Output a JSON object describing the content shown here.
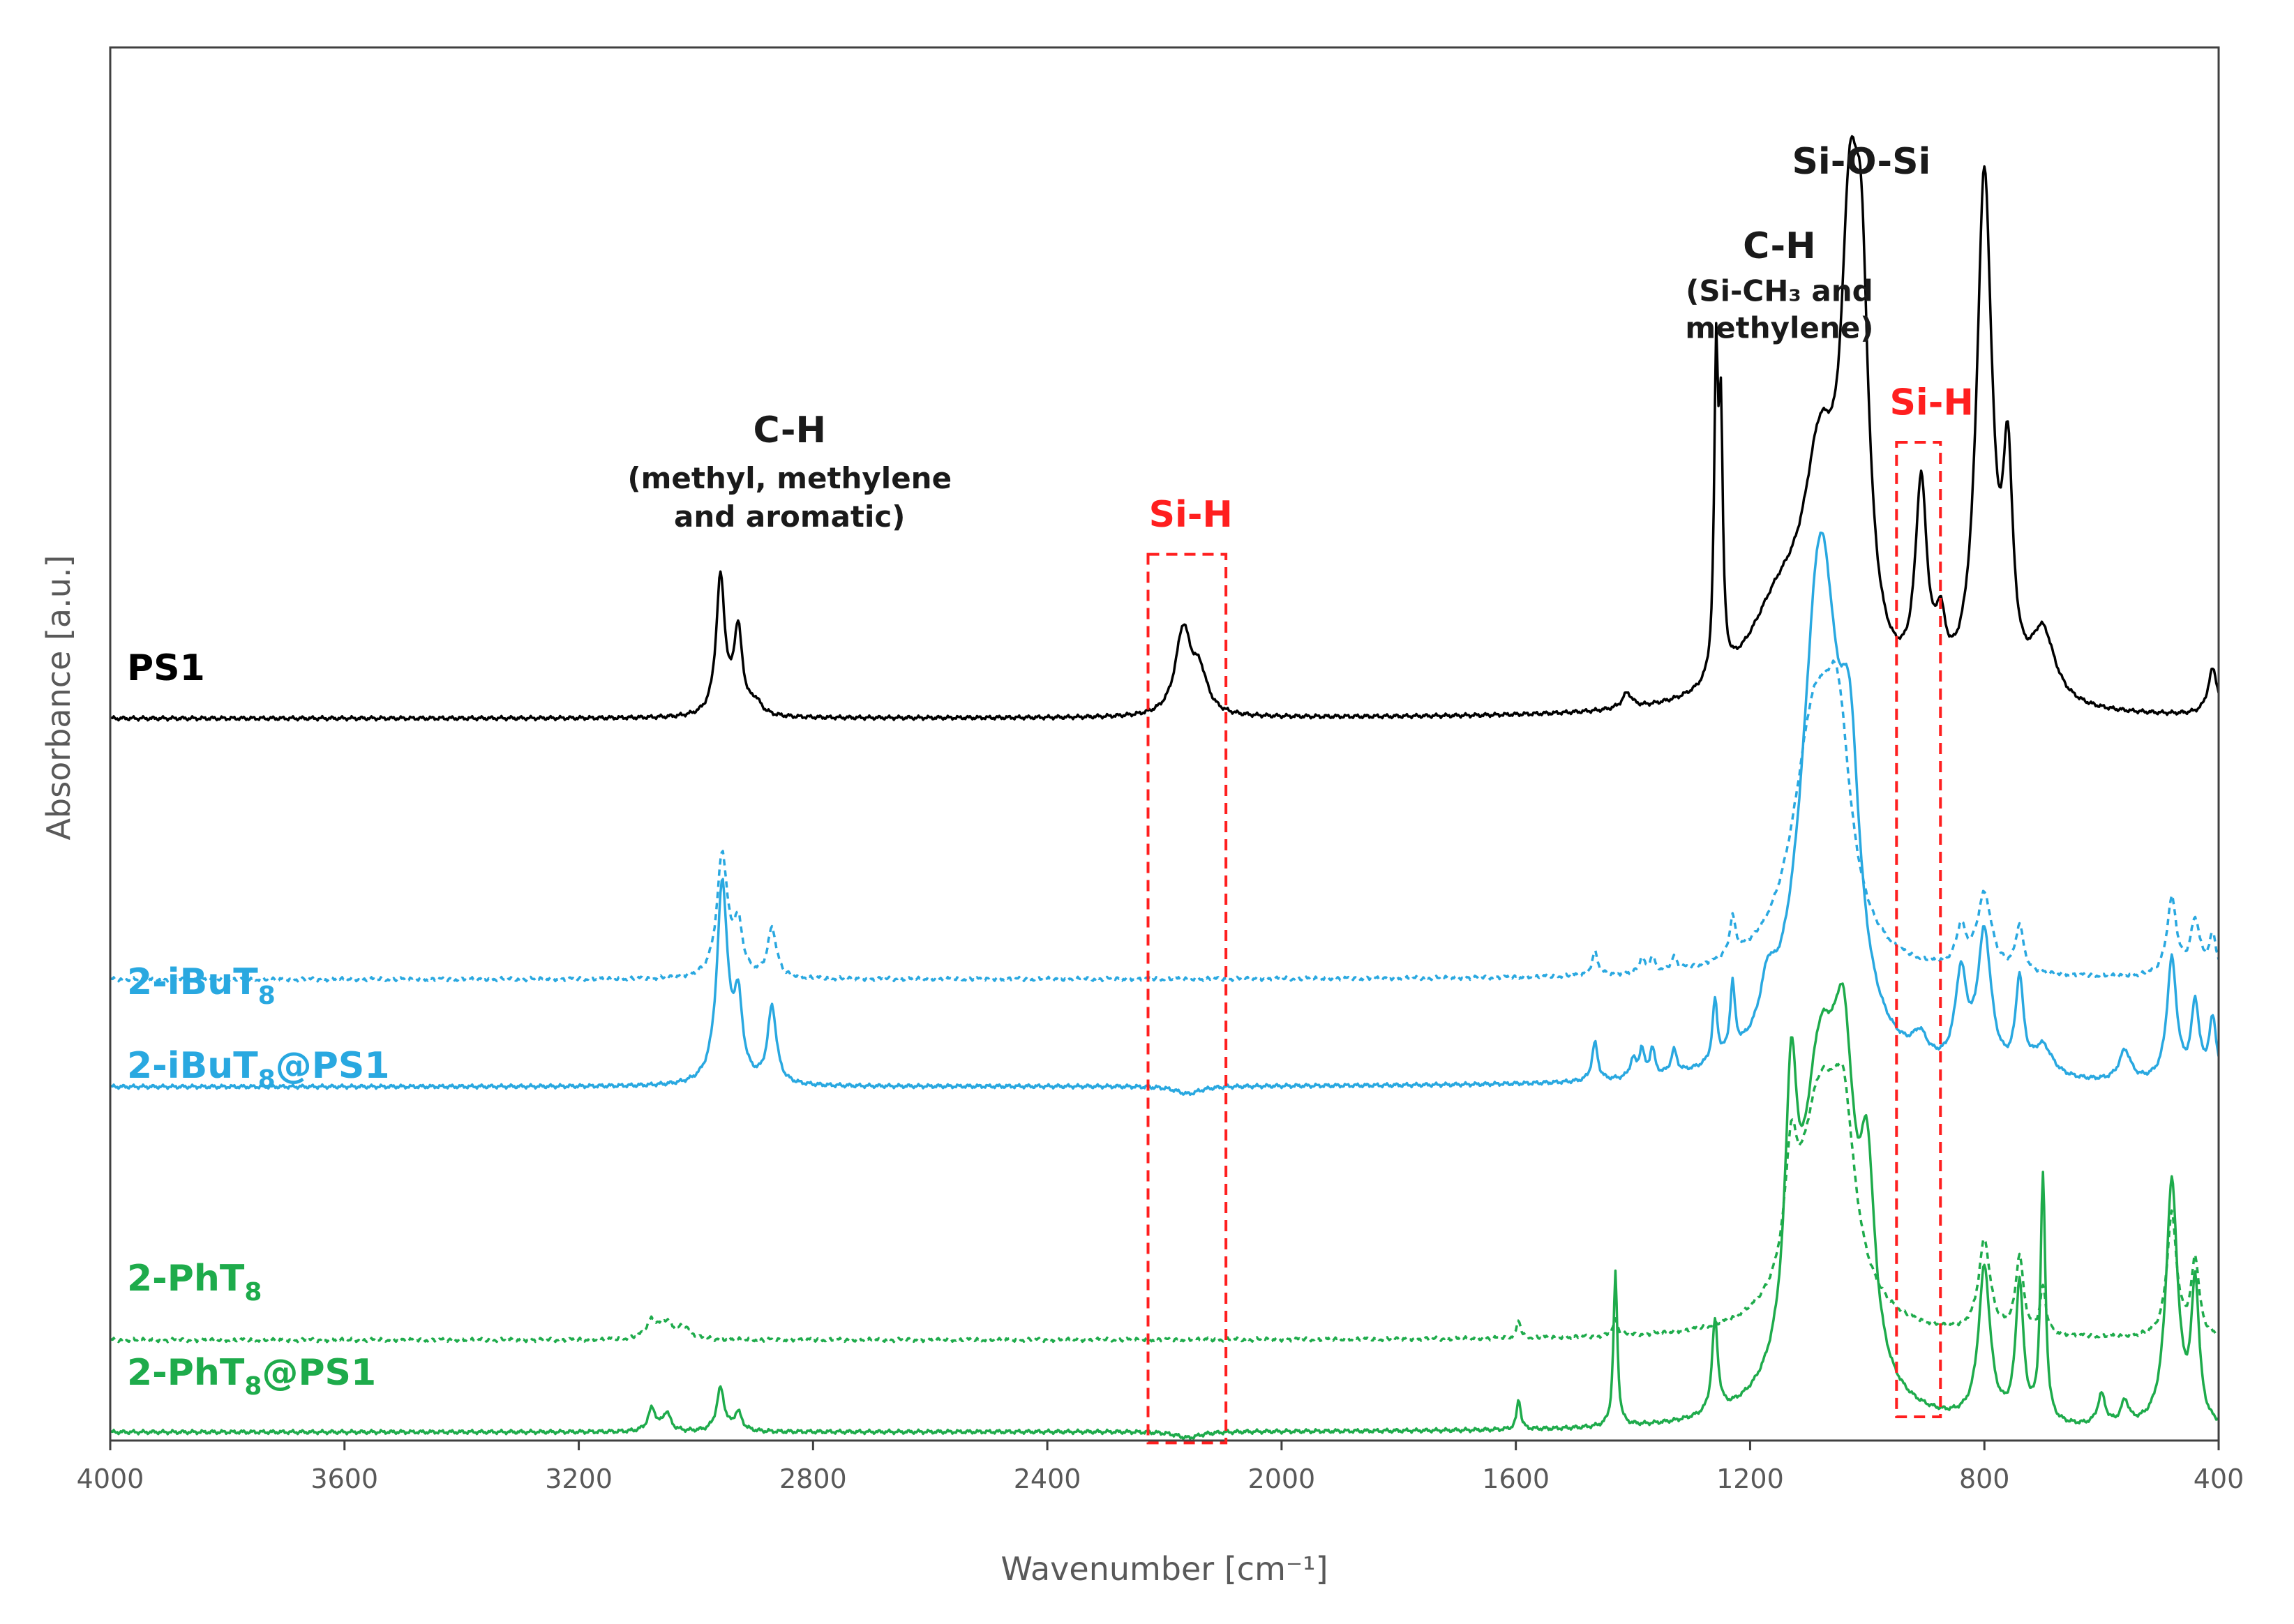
{
  "chart_data": {
    "type": "line",
    "title": "",
    "xlabel": "Wavenumber [cm⁻¹]",
    "ylabel": "Absorbance [a.u.]",
    "xlim": [
      4000,
      400
    ],
    "x_reversed": true,
    "x_ticks": [
      4000,
      3600,
      3200,
      2800,
      2400,
      2000,
      1600,
      1200,
      800,
      400
    ],
    "grid": false,
    "legend": "inline labels at left",
    "colors": {
      "PS1": "#000000",
      "iBu": "#29a8e0",
      "Ph": "#1eab4b",
      "highlight": "#ff1f1f",
      "axis": "#404040"
    },
    "series": [
      {
        "name": "PS1",
        "label_main": "PS1",
        "label_sub": "",
        "label_tail": "",
        "style": "solid",
        "baseline": 0.0,
        "peaks": [
          [
            2958,
            0.9,
            9
          ],
          [
            2928,
            0.55,
            9
          ],
          [
            2898,
            0.08,
            12
          ],
          [
            2168,
            0.55,
            16
          ],
          [
            2140,
            0.25,
            16
          ],
          [
            1410,
            0.1,
            10
          ],
          [
            1258,
            2.0,
            4
          ],
          [
            1250,
            1.55,
            4
          ],
          [
            1150,
            0.6,
            70
          ],
          [
            1080,
            1.3,
            35
          ],
          [
            1030,
            2.4,
            18
          ],
          [
            1010,
            2.0,
            15
          ],
          [
            908,
            1.3,
            12
          ],
          [
            875,
            0.35,
            10
          ],
          [
            800,
            3.4,
            16
          ],
          [
            760,
            1.35,
            10
          ],
          [
            700,
            0.45,
            25
          ],
          [
            410,
            0.3,
            10
          ]
        ]
      },
      {
        "name": "2-iBuT8",
        "label_main": "2-iBuT",
        "label_sub": "8",
        "label_tail": "",
        "style": "dashed",
        "baseline": -1.7,
        "peaks": [
          [
            2955,
            0.8,
            11
          ],
          [
            2928,
            0.32,
            9
          ],
          [
            2870,
            0.32,
            9
          ],
          [
            1465,
            0.15,
            6
          ],
          [
            1385,
            0.1,
            5
          ],
          [
            1367,
            0.1,
            5
          ],
          [
            1330,
            0.08,
            6
          ],
          [
            1230,
            0.25,
            6
          ],
          [
            1090,
            1.6,
            45
          ],
          [
            1050,
            1.1,
            25
          ],
          [
            840,
            0.25,
            10
          ],
          [
            800,
            0.5,
            15
          ],
          [
            740,
            0.3,
            8
          ],
          [
            480,
            0.5,
            10
          ],
          [
            440,
            0.35,
            10
          ],
          [
            410,
            0.25,
            8
          ]
        ]
      },
      {
        "name": "2-iBuT8@PS1",
        "label_main": "2-iBuT",
        "label_sub": "8",
        "label_tail": "@PS1",
        "style": "solid",
        "baseline": -2.4,
        "peaks": [
          [
            2955,
            1.3,
            11
          ],
          [
            2928,
            0.5,
            9
          ],
          [
            2870,
            0.5,
            9
          ],
          [
            2160,
            -0.05,
            25
          ],
          [
            1465,
            0.25,
            6
          ],
          [
            1400,
            0.12,
            6
          ],
          [
            1385,
            0.18,
            5
          ],
          [
            1367,
            0.18,
            5
          ],
          [
            1330,
            0.15,
            6
          ],
          [
            1260,
            0.4,
            5
          ],
          [
            1230,
            0.45,
            5
          ],
          [
            1170,
            0.3,
            15
          ],
          [
            1080,
            3.4,
            38
          ],
          [
            1030,
            1.4,
            20
          ],
          [
            910,
            0.15,
            15
          ],
          [
            840,
            0.6,
            12
          ],
          [
            800,
            0.9,
            14
          ],
          [
            740,
            0.6,
            8
          ],
          [
            700,
            0.2,
            20
          ],
          [
            560,
            0.2,
            12
          ],
          [
            480,
            0.8,
            10
          ],
          [
            440,
            0.5,
            8
          ],
          [
            410,
            0.4,
            8
          ]
        ]
      },
      {
        "name": "2-PhT8",
        "label_main": "2-PhT",
        "label_sub": "8",
        "label_tail": "",
        "style": "dashed",
        "baseline": -4.05,
        "peaks": [
          [
            3075,
            0.12,
            12
          ],
          [
            3050,
            0.1,
            12
          ],
          [
            3020,
            0.08,
            12
          ],
          [
            1595,
            0.12,
            4
          ],
          [
            1430,
            0.1,
            5
          ],
          [
            1130,
            0.7,
            12
          ],
          [
            1080,
            1.5,
            45
          ],
          [
            1040,
            0.9,
            22
          ],
          [
            800,
            0.6,
            12
          ],
          [
            740,
            0.5,
            8
          ],
          [
            700,
            0.3,
            6
          ],
          [
            480,
            0.8,
            10
          ],
          [
            440,
            0.5,
            8
          ]
        ]
      },
      {
        "name": "2-PhT8@PS1",
        "label_main": "2-PhT",
        "label_sub": "8",
        "label_tail": "@PS1",
        "style": "solid",
        "baseline": -4.65,
        "peaks": [
          [
            3075,
            0.15,
            8
          ],
          [
            3050,
            0.12,
            8
          ],
          [
            2958,
            0.28,
            8
          ],
          [
            2928,
            0.12,
            8
          ],
          [
            2160,
            -0.04,
            25
          ],
          [
            1595,
            0.2,
            4
          ],
          [
            1430,
            1.0,
            4
          ],
          [
            1260,
            0.6,
            6
          ],
          [
            1130,
            1.6,
            12
          ],
          [
            1080,
            2.2,
            40
          ],
          [
            1040,
            1.6,
            22
          ],
          [
            1000,
            1.2,
            15
          ],
          [
            800,
            1.0,
            12
          ],
          [
            740,
            0.9,
            8
          ],
          [
            700,
            1.6,
            5
          ],
          [
            600,
            0.2,
            8
          ],
          [
            560,
            0.15,
            8
          ],
          [
            480,
            1.6,
            12
          ],
          [
            440,
            0.9,
            8
          ]
        ]
      }
    ],
    "annotations": [
      {
        "text": "C-H",
        "x": 2840,
        "y": 1.8,
        "size": "large",
        "color": "black"
      },
      {
        "text": "(methyl, methylene",
        "x": 2840,
        "y": 1.5,
        "size": "small",
        "color": "black"
      },
      {
        "text": "and aromatic)",
        "x": 2840,
        "y": 1.25,
        "size": "small",
        "color": "black"
      },
      {
        "text": "Si-H",
        "x": 2155,
        "y": 1.25,
        "size": "large",
        "color": "red"
      },
      {
        "text": "C-H",
        "x": 1150,
        "y": 3.0,
        "size": "large",
        "color": "black"
      },
      {
        "text": "(Si-CH₃ and",
        "x": 1150,
        "y": 2.72,
        "size": "small",
        "color": "black"
      },
      {
        "text": "methylene)",
        "x": 1150,
        "y": 2.48,
        "size": "small",
        "color": "black"
      },
      {
        "text": "Si-O-Si",
        "x": 1010,
        "y": 3.55,
        "size": "large",
        "color": "black"
      },
      {
        "text": "Si-H",
        "x": 890,
        "y": 1.98,
        "size": "large",
        "color": "red"
      }
    ],
    "highlight_boxes": [
      {
        "x_from": 2228,
        "x_to": 2095,
        "y_top": 1.07,
        "y_bottom": -4.72
      },
      {
        "x_from": 950,
        "x_to": 875,
        "y_top": 1.8,
        "y_bottom": -4.55
      }
    ]
  }
}
